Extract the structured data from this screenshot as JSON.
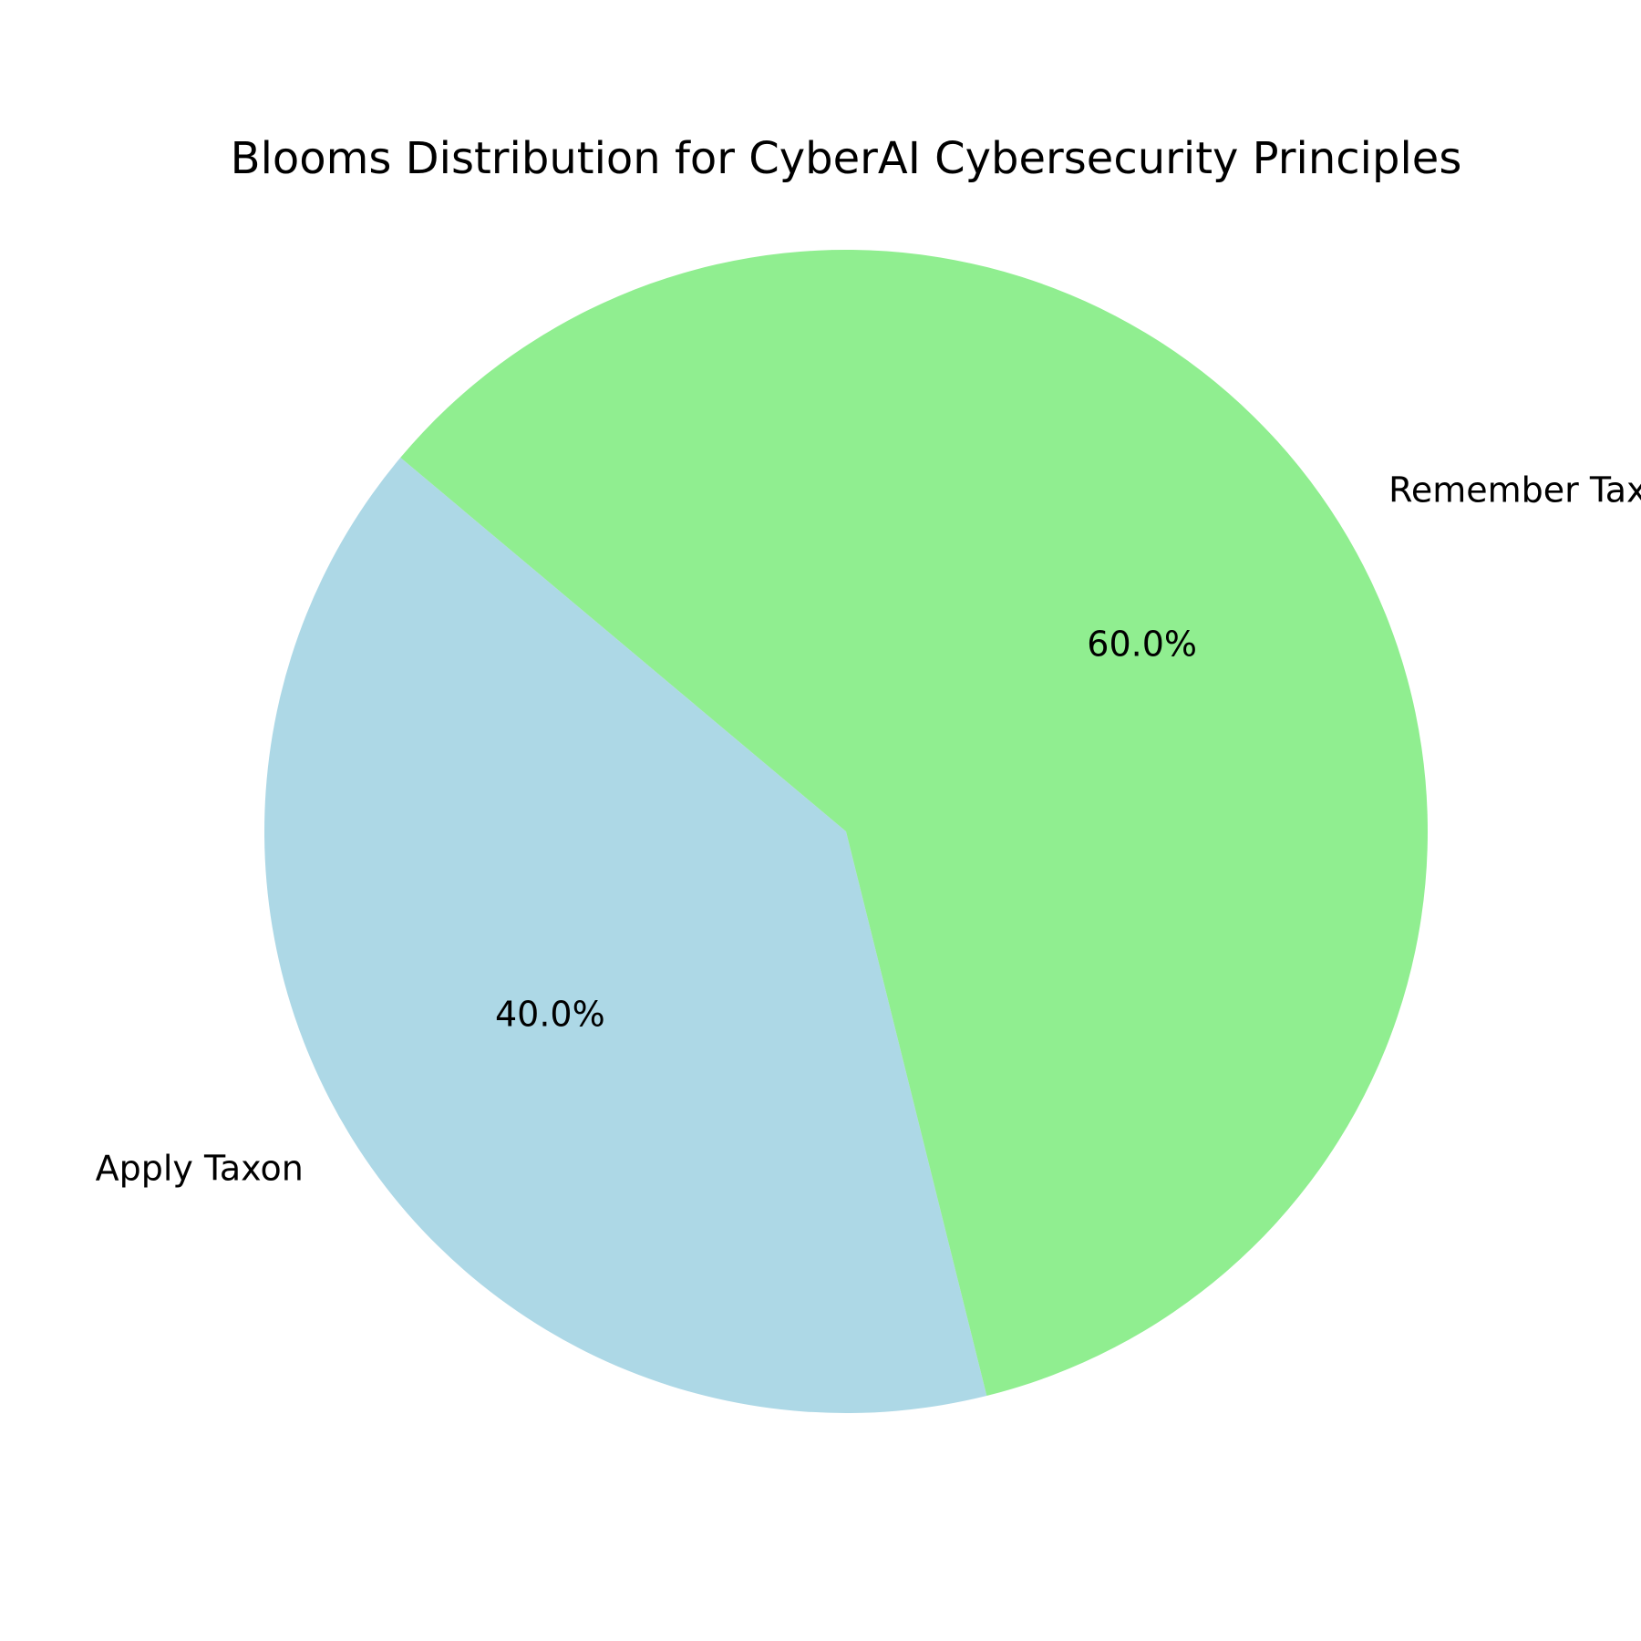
{
  "chart_data": {
    "type": "pie",
    "title": "Blooms Distribution for CyberAI Cybersecurity Principles",
    "slices": [
      {
        "label": "Apply Taxon",
        "value": 40.0,
        "pct_label": "40.0%",
        "color": "#add8e6"
      },
      {
        "label": "Remember Taxon",
        "value": 60.0,
        "pct_label": "60.0%",
        "color": "#90ee90"
      }
    ],
    "start_angle_deg": 140,
    "direction": "counterclockwise",
    "legend": "none"
  }
}
